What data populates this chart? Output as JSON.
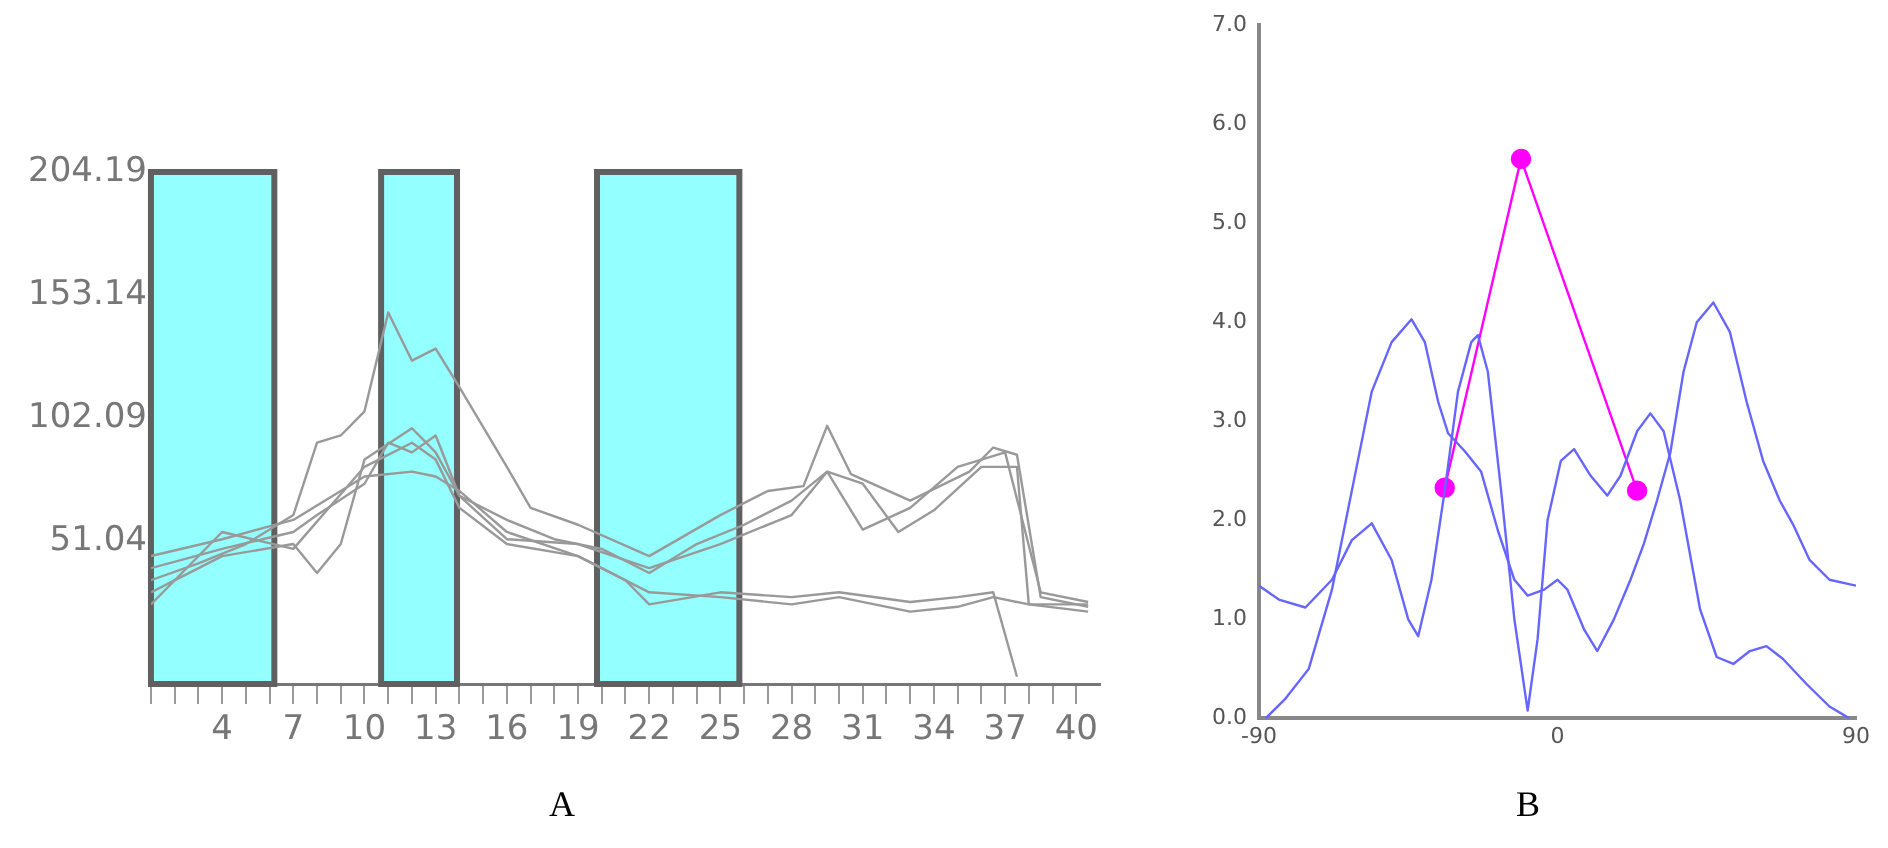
{
  "chart_data": [
    {
      "type": "line",
      "title": "A",
      "xlim": [
        1,
        41
      ],
      "ylim": [
        -8,
        204.19
      ],
      "xticks": [
        {
          "value": 1,
          "label": null
        },
        {
          "value": 2,
          "label": null
        },
        {
          "value": 3,
          "label": null
        },
        4,
        {
          "value": 5,
          "label": null
        },
        {
          "value": 6,
          "label": null
        },
        7,
        {
          "value": 8,
          "label": null
        },
        {
          "value": 9,
          "label": null
        },
        10,
        {
          "value": 11,
          "label": null
        },
        {
          "value": 12,
          "label": null
        },
        13,
        {
          "value": 14,
          "label": null
        },
        {
          "value": 15,
          "label": null
        },
        16,
        {
          "value": 17,
          "label": null
        },
        {
          "value": 18,
          "label": null
        },
        19,
        {
          "value": 20,
          "label": null
        },
        {
          "value": 21,
          "label": null
        },
        22,
        {
          "value": 23,
          "label": null
        },
        {
          "value": 24,
          "label": null
        },
        25,
        {
          "value": 26,
          "label": null
        },
        {
          "value": 27,
          "label": null
        },
        28,
        {
          "value": 29,
          "label": null
        },
        {
          "value": 30,
          "label": null
        },
        31,
        {
          "value": 32,
          "label": null
        },
        {
          "value": 33,
          "label": null
        },
        34,
        {
          "value": 35,
          "label": null
        },
        {
          "value": 36,
          "label": null
        },
        37,
        {
          "value": 38,
          "label": null
        },
        {
          "value": 39,
          "label": null
        },
        40
      ],
      "yticks": [
        51.04,
        102.09,
        153.14,
        204.19
      ],
      "grid": false,
      "legend": false,
      "marker": "none",
      "bands": [
        {
          "axis": "x",
          "from": 1,
          "to": 6.2,
          "color": "#80ffff"
        },
        {
          "axis": "x",
          "from": 10.7,
          "to": 13.9,
          "color": "#80ffff"
        },
        {
          "axis": "x",
          "from": 19.8,
          "to": 25.8,
          "color": "#80ffff"
        }
      ],
      "series": [
        {
          "color": "#999999",
          "x": [
            1,
            3,
            5,
            7,
            8,
            9,
            10,
            11,
            12,
            13,
            14,
            16,
            17,
            19,
            22,
            25,
            27,
            28.5,
            29.5,
            30.5,
            33,
            35.5,
            36.5,
            37.5,
            38.5,
            40.5
          ],
          "values": [
            35,
            42,
            50,
            62,
            92,
            95,
            105,
            146,
            126,
            131,
            115,
            82,
            65,
            58,
            45,
            62,
            72,
            74,
            99,
            79,
            68,
            80,
            90,
            87,
            28,
            24
          ]
        },
        {
          "color": "#999999",
          "x": [
            1,
            4,
            7,
            8,
            10,
            11,
            12,
            13,
            14,
            16,
            18,
            20,
            22,
            24,
            26,
            28,
            29.5,
            31,
            33,
            35,
            37,
            38.5,
            40.5
          ],
          "values": [
            40,
            48,
            55,
            62,
            75,
            92,
            88,
            95,
            70,
            60,
            52,
            48,
            38,
            50,
            58,
            68,
            80,
            56,
            65,
            82,
            88,
            30,
            26
          ]
        },
        {
          "color": "#999999",
          "x": [
            1,
            4,
            7,
            10,
            12,
            13,
            14,
            16,
            19,
            22,
            25,
            28,
            30,
            33,
            35,
            36.5,
            38,
            40.5
          ],
          "values": [
            45,
            52,
            60,
            78,
            80,
            78,
            72,
            55,
            45,
            30,
            28,
            25,
            28,
            22,
            24,
            28,
            25,
            22
          ]
        },
        {
          "color": "#999999",
          "x": [
            1,
            4,
            7,
            8,
            9,
            10,
            12,
            13,
            14,
            16,
            19,
            22,
            25,
            28,
            29.5,
            31,
            32.5,
            34,
            36,
            37.5,
            38,
            40.5
          ],
          "values": [
            30,
            45,
            50,
            38,
            50,
            85,
            98,
            88,
            70,
            52,
            50,
            40,
            50,
            62,
            80,
            75,
            55,
            64,
            82,
            82,
            25,
            25
          ]
        },
        {
          "color": "#999999",
          "x": [
            1,
            4,
            7,
            10,
            12,
            13,
            14,
            16,
            19,
            21,
            22,
            25,
            28,
            30,
            33,
            35,
            36.5,
            37.5
          ],
          "values": [
            25,
            55,
            48,
            82,
            92,
            85,
            65,
            50,
            45,
            35,
            25,
            30,
            28,
            30,
            26,
            28,
            30,
            -5
          ]
        }
      ]
    },
    {
      "type": "line",
      "title": "B",
      "xlim": [
        -90,
        90
      ],
      "ylim": [
        0,
        7
      ],
      "xticks": [
        -90,
        0,
        90
      ],
      "yticks": [
        {
          "value": 0,
          "label": "0.0"
        },
        {
          "value": 1,
          "label": "1.0"
        },
        {
          "value": 2,
          "label": "2.0"
        },
        {
          "value": 3,
          "label": "3.0"
        },
        {
          "value": 4,
          "label": "4.0"
        },
        {
          "value": 5,
          "label": "5.0"
        },
        {
          "value": 6,
          "label": "6.0"
        },
        {
          "value": 7,
          "label": "7.0"
        }
      ],
      "grid": false,
      "legend": false,
      "series": [
        {
          "color": "#6666ff",
          "marker": "none",
          "x": [
            -90,
            -84,
            -76,
            -68,
            -62,
            -56,
            -50,
            -45,
            -42,
            -38,
            -34,
            -30,
            -26,
            -24,
            -21,
            -17,
            -13,
            -9,
            -6,
            -3,
            1,
            5,
            10,
            15,
            19,
            24,
            28,
            32,
            37,
            43,
            48,
            53,
            58,
            63,
            68,
            75,
            82,
            88
          ],
          "values": [
            1.34,
            1.2,
            1.12,
            1.4,
            1.8,
            1.97,
            1.6,
            1.0,
            0.83,
            1.4,
            2.3,
            3.3,
            3.8,
            3.87,
            3.5,
            2.3,
            1.0,
            0.08,
            0.8,
            2.0,
            2.6,
            2.72,
            2.45,
            2.25,
            2.45,
            2.9,
            3.08,
            2.9,
            2.2,
            1.1,
            0.62,
            0.55,
            0.68,
            0.73,
            0.6,
            0.35,
            0.12,
            0
          ]
        },
        {
          "color": "#6666ff",
          "marker": "none",
          "x": [
            -88,
            -82,
            -75,
            -68,
            -62,
            -56,
            -50,
            -44,
            -40,
            -36,
            -33,
            -28,
            -23,
            -18,
            -13,
            -9,
            -4,
            0,
            3,
            8,
            12,
            17,
            22,
            26,
            30,
            34,
            38,
            42,
            47,
            52,
            57,
            62,
            67,
            71,
            76,
            82,
            90
          ],
          "values": [
            0,
            0.2,
            0.5,
            1.3,
            2.3,
            3.3,
            3.8,
            4.03,
            3.8,
            3.2,
            2.88,
            2.7,
            2.49,
            1.9,
            1.4,
            1.24,
            1.3,
            1.4,
            1.3,
            0.9,
            0.68,
            1.0,
            1.4,
            1.76,
            2.2,
            2.68,
            3.5,
            4.0,
            4.2,
            3.9,
            3.2,
            2.6,
            2.2,
            1.96,
            1.6,
            1.4,
            1.34
          ]
        },
        {
          "color": "#ff00ff",
          "marker": "circle",
          "x": [
            -34,
            -11,
            24
          ],
          "values": [
            2.33,
            5.65,
            2.3
          ]
        }
      ]
    }
  ]
}
